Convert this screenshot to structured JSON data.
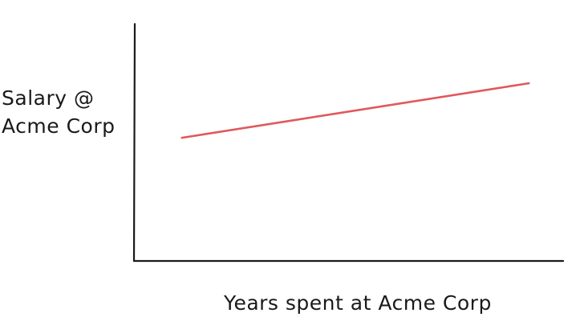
{
  "chart_data": {
    "type": "line",
    "title": "",
    "xlabel": "Years spent at Acme Corp",
    "ylabel_lines": [
      "Salary @",
      "Acme Corp"
    ],
    "ylim": [
      0,
      1
    ],
    "xlim": [
      0,
      1
    ],
    "grid": false,
    "series": [
      {
        "color": "#e0585b",
        "x": [
          0.11,
          0.92
        ],
        "y": [
          0.52,
          0.75
        ]
      }
    ]
  }
}
